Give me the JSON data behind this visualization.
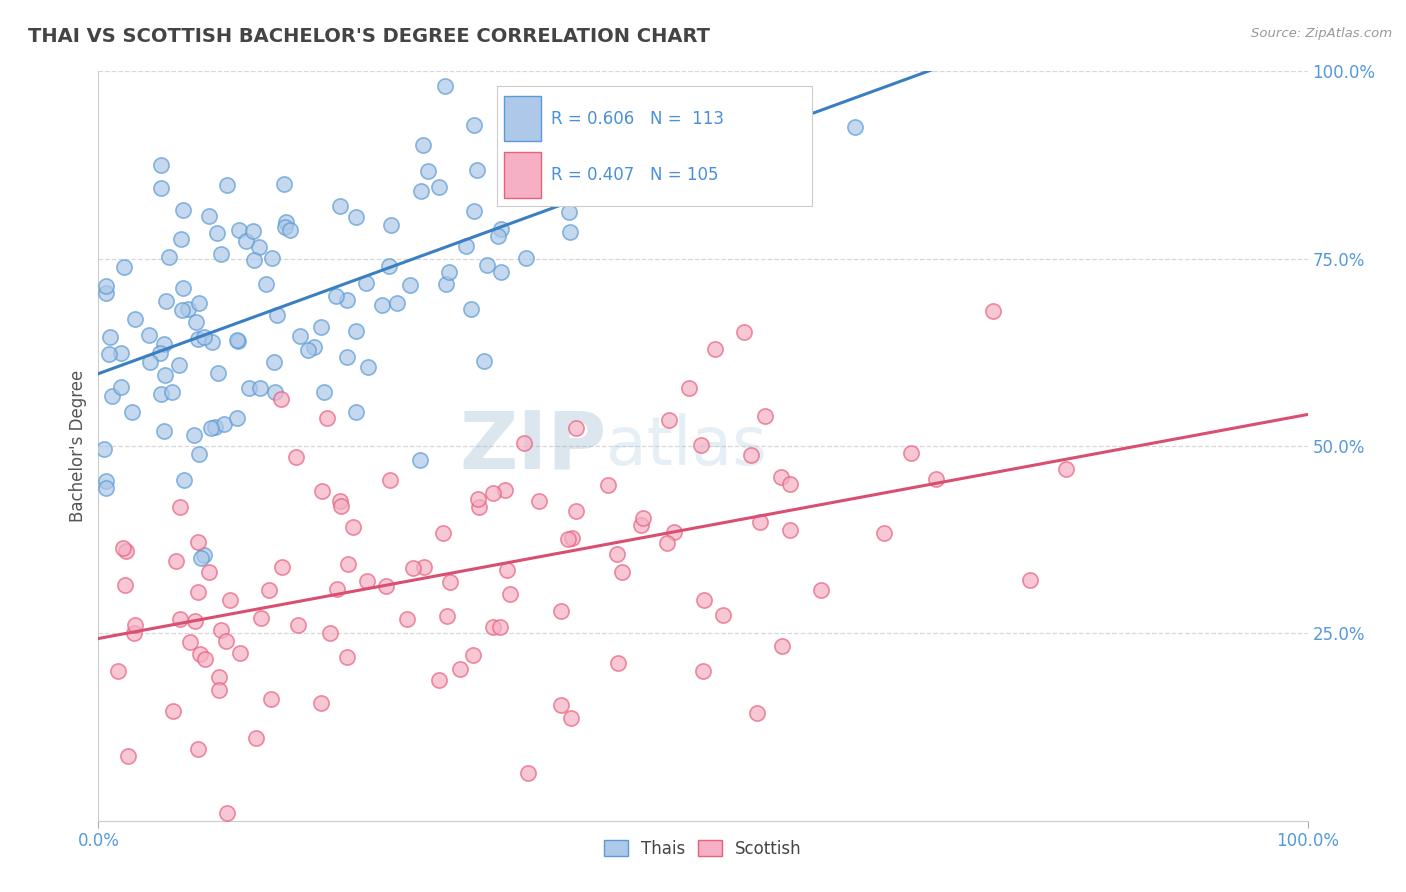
{
  "title": "THAI VS SCOTTISH BACHELOR'S DEGREE CORRELATION CHART",
  "source_text": "Source: ZipAtlas.com",
  "ylabel": "Bachelor's Degree",
  "xlim": [
    0.0,
    1.0
  ],
  "ylim": [
    0.0,
    1.0
  ],
  "thai_color": "#adc8e8",
  "scottish_color": "#f5b0c5",
  "thai_edge_color": "#5b9bd5",
  "scottish_edge_color": "#e8607a",
  "thai_line_color": "#3a7fc1",
  "scottish_line_color": "#d94f70",
  "dashed_line_color": "#b8ccb8",
  "watermark_zip_color": "#6090b8",
  "watermark_atlas_color": "#90b8d8",
  "legend_box_color": "#cccccc",
  "legend_text_color": "#4a90d9",
  "right_tick_color": "#5599dd",
  "bottom_tick_color": "#5599dd",
  "background_color": "#ffffff",
  "grid_color": "#d8d8d8",
  "title_color": "#444444",
  "ylabel_color": "#555555",
  "thai_R": 0.606,
  "scottish_R": 0.407,
  "thai_N": 113,
  "scottish_N": 105
}
